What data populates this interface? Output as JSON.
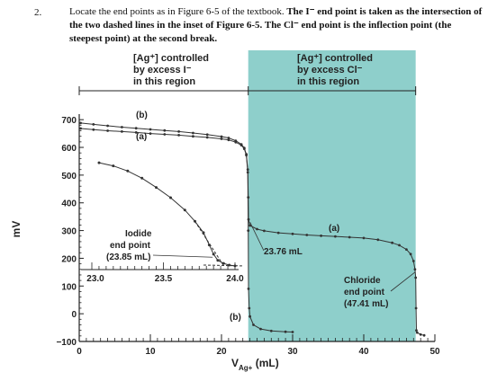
{
  "question": {
    "number": "2.",
    "text_plain": "Locate the end points as in Figure 6-5 of the textbook.",
    "text_bold": "The I⁻ end point is taken as the intersection of the two dashed lines in the inset of Figure 6-5.  The Cl⁻ end point is the inflection point (the steepest point) at the second break."
  },
  "regions": {
    "left_line1": "[Ag⁺] controlled",
    "left_line2": "by excess I⁻",
    "left_line3": "in this region",
    "right_line1": "[Ag⁺] controlled",
    "right_line2": "by excess Cl⁻",
    "right_line3": "in this region"
  },
  "colors": {
    "shaded_region": "#8ecfcb",
    "curve": "#333333",
    "axis": "#222222"
  },
  "chart_data": {
    "type": "line",
    "xlabel_main": "V",
    "xlabel_sub": "Ag+",
    "xlabel_unit": "(mL)",
    "ylabel": "mV",
    "xlim": [
      0,
      50
    ],
    "ylim": [
      -100,
      720
    ],
    "x_ticks": [
      "0",
      "10",
      "20",
      "30",
      "40",
      "50"
    ],
    "y_ticks": [
      "700",
      "600",
      "500",
      "400",
      "300",
      "200",
      "100",
      "0",
      "−100"
    ],
    "shaded_region_x": [
      23.76,
      47.3
    ],
    "series": [
      {
        "name": "(a)",
        "points": [
          [
            0.2,
            688
          ],
          [
            2,
            683
          ],
          [
            4,
            678
          ],
          [
            6,
            673
          ],
          [
            8,
            669
          ],
          [
            10,
            665
          ],
          [
            12,
            661
          ],
          [
            14,
            657
          ],
          [
            16,
            652
          ],
          [
            18,
            646
          ],
          [
            20,
            639
          ],
          [
            21,
            634
          ],
          [
            22,
            624
          ],
          [
            22.8,
            611
          ],
          [
            23.2,
            598
          ],
          [
            23.5,
            575
          ],
          [
            23.7,
            520
          ],
          [
            23.76,
            420
          ],
          [
            23.8,
            340
          ],
          [
            24,
            318
          ],
          [
            25,
            305
          ],
          [
            26,
            299
          ],
          [
            28,
            292
          ],
          [
            30,
            288
          ],
          [
            32,
            284
          ],
          [
            34,
            281
          ],
          [
            36,
            279
          ],
          [
            38,
            276
          ],
          [
            40,
            273
          ],
          [
            42,
            267
          ],
          [
            44,
            256
          ],
          [
            45,
            247
          ],
          [
            46,
            232
          ],
          [
            46.6,
            215
          ],
          [
            47,
            190
          ],
          [
            47.2,
            160
          ],
          [
            47.3,
            130
          ],
          [
            47.35,
            20
          ],
          [
            47.4,
            -60
          ],
          [
            47.5,
            -68
          ],
          [
            48,
            -75
          ],
          [
            48.5,
            -78
          ]
        ]
      },
      {
        "name": "(b)",
        "points": [
          [
            0.2,
            668
          ],
          [
            2,
            664
          ],
          [
            4,
            660
          ],
          [
            6,
            657
          ],
          [
            8,
            654
          ],
          [
            10,
            650
          ],
          [
            12,
            647
          ],
          [
            14,
            644
          ],
          [
            16,
            640
          ],
          [
            18,
            636
          ],
          [
            20,
            631
          ],
          [
            21,
            627
          ],
          [
            22,
            619
          ],
          [
            22.8,
            608
          ],
          [
            23.2,
            595
          ],
          [
            23.5,
            572
          ],
          [
            23.7,
            510
          ],
          [
            23.76,
            300
          ],
          [
            23.8,
            90
          ],
          [
            23.9,
            20
          ],
          [
            24,
            -10
          ],
          [
            24.5,
            -40
          ],
          [
            25.5,
            -55
          ],
          [
            27,
            -62
          ],
          [
            29,
            -65
          ],
          [
            30,
            -66
          ]
        ]
      }
    ],
    "inset": {
      "x_ticks": [
        "23.0",
        "23.5",
        "24.0"
      ],
      "xlim": [
        23.0,
        24.0
      ],
      "label_iodide_line1": "Iodide",
      "label_iodide_line2": "end point",
      "label_iodide_line3": "(23.85 mL)",
      "points": [
        [
          23.05,
          520
        ],
        [
          23.15,
          505
        ],
        [
          23.25,
          480
        ],
        [
          23.35,
          445
        ],
        [
          23.45,
          400
        ],
        [
          23.55,
          350
        ],
        [
          23.65,
          290
        ],
        [
          23.72,
          235
        ],
        [
          23.78,
          180
        ],
        [
          23.82,
          120
        ],
        [
          23.85,
          75
        ],
        [
          23.88,
          45
        ],
        [
          23.92,
          30
        ],
        [
          23.96,
          22
        ],
        [
          24.0,
          18
        ]
      ]
    },
    "annotations": {
      "label_a_top": "(a)",
      "label_b_top": "(b)",
      "label_a_right": "(a)",
      "label_b_bottom": "(b)",
      "first_endpoint": "23.76 mL",
      "chloride_line1": "Chloride",
      "chloride_line2": "end point",
      "chloride_line3": "(47.41 mL)"
    }
  }
}
